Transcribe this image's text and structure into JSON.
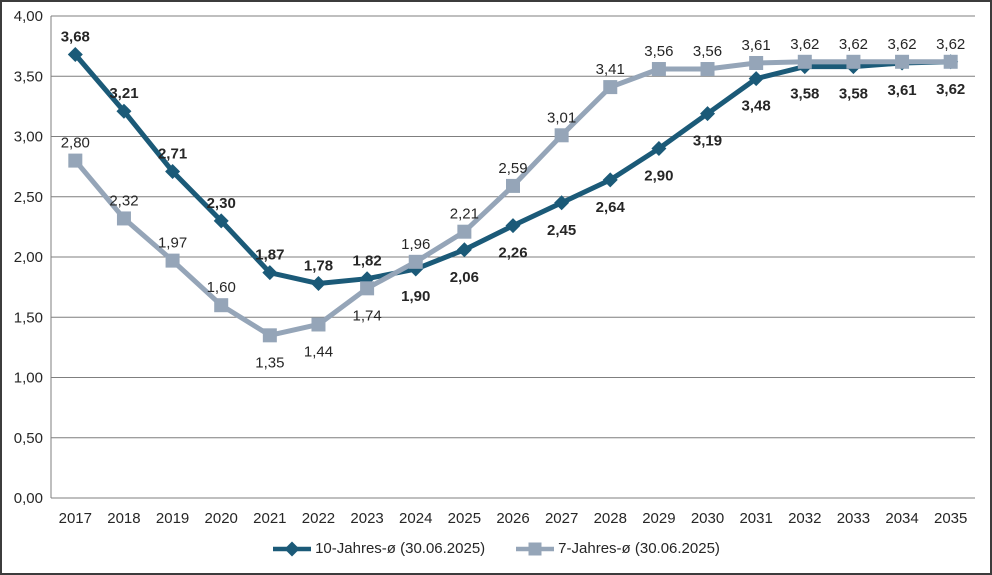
{
  "chart_data": {
    "type": "line",
    "categories": [
      "2017",
      "2018",
      "2019",
      "2020",
      "2021",
      "2022",
      "2023",
      "2024",
      "2025",
      "2026",
      "2027",
      "2028",
      "2029",
      "2030",
      "2031",
      "2032",
      "2033",
      "2034",
      "2035"
    ],
    "series": [
      {
        "name": "10-Jahres-ø (30.06.2025)",
        "marker": "diamond",
        "color": "#1b5a78",
        "label_weight": "bold",
        "values": [
          3.68,
          3.21,
          2.71,
          2.3,
          1.87,
          1.78,
          1.82,
          1.9,
          2.06,
          2.26,
          2.45,
          2.64,
          2.9,
          3.19,
          3.48,
          3.58,
          3.58,
          3.61,
          3.62
        ],
        "labels": [
          "3,68",
          "3,21",
          "2,71",
          "2,30",
          "1,87",
          "1,78",
          "1,82",
          "1,90",
          "2,06",
          "2,26",
          "2,45",
          "2,64",
          "2,90",
          "3,19",
          "3,48",
          "3,58",
          "3,58",
          "3,61",
          "3,62"
        ],
        "label_positions": [
          "above",
          "above",
          "above",
          "above",
          "above",
          "above",
          "above",
          "below",
          "below",
          "below",
          "below",
          "below",
          "below",
          "below",
          "below",
          "below",
          "below",
          "below",
          "below"
        ]
      },
      {
        "name": "7-Jahres-ø (30.06.2025)",
        "marker": "square",
        "color": "#95a5b8",
        "label_weight": "normal",
        "values": [
          2.8,
          2.32,
          1.97,
          1.6,
          1.35,
          1.44,
          1.74,
          1.96,
          2.21,
          2.59,
          3.01,
          3.41,
          3.56,
          3.56,
          3.61,
          3.62,
          3.62,
          3.62,
          3.62
        ],
        "labels": [
          "2,80",
          "2,32",
          "1,97",
          "1,60",
          "1,35",
          "1,44",
          "1,74",
          "1,96",
          "2,21",
          "2,59",
          "3,01",
          "3,41",
          "3,56",
          "3,56",
          "3,61",
          "3,62",
          "3,62",
          "3,62",
          "3,62"
        ],
        "label_positions": [
          "above",
          "above",
          "above",
          "above",
          "below",
          "below",
          "below",
          "above",
          "above",
          "above",
          "above",
          "above",
          "above",
          "above",
          "above",
          "above",
          "above",
          "above",
          "above"
        ]
      }
    ],
    "y_axis": {
      "min": 0,
      "max": 4,
      "tick_step": 0.5,
      "tick_labels": [
        "4,00",
        "3,50",
        "3,00",
        "2,50",
        "2,00",
        "1,50",
        "1,00",
        "0,50",
        "0,00"
      ]
    },
    "grid": true,
    "legend_position": "bottom",
    "decimal_separator": ",",
    "text_color": "#262626",
    "grid_color": "#7f7f7f"
  }
}
